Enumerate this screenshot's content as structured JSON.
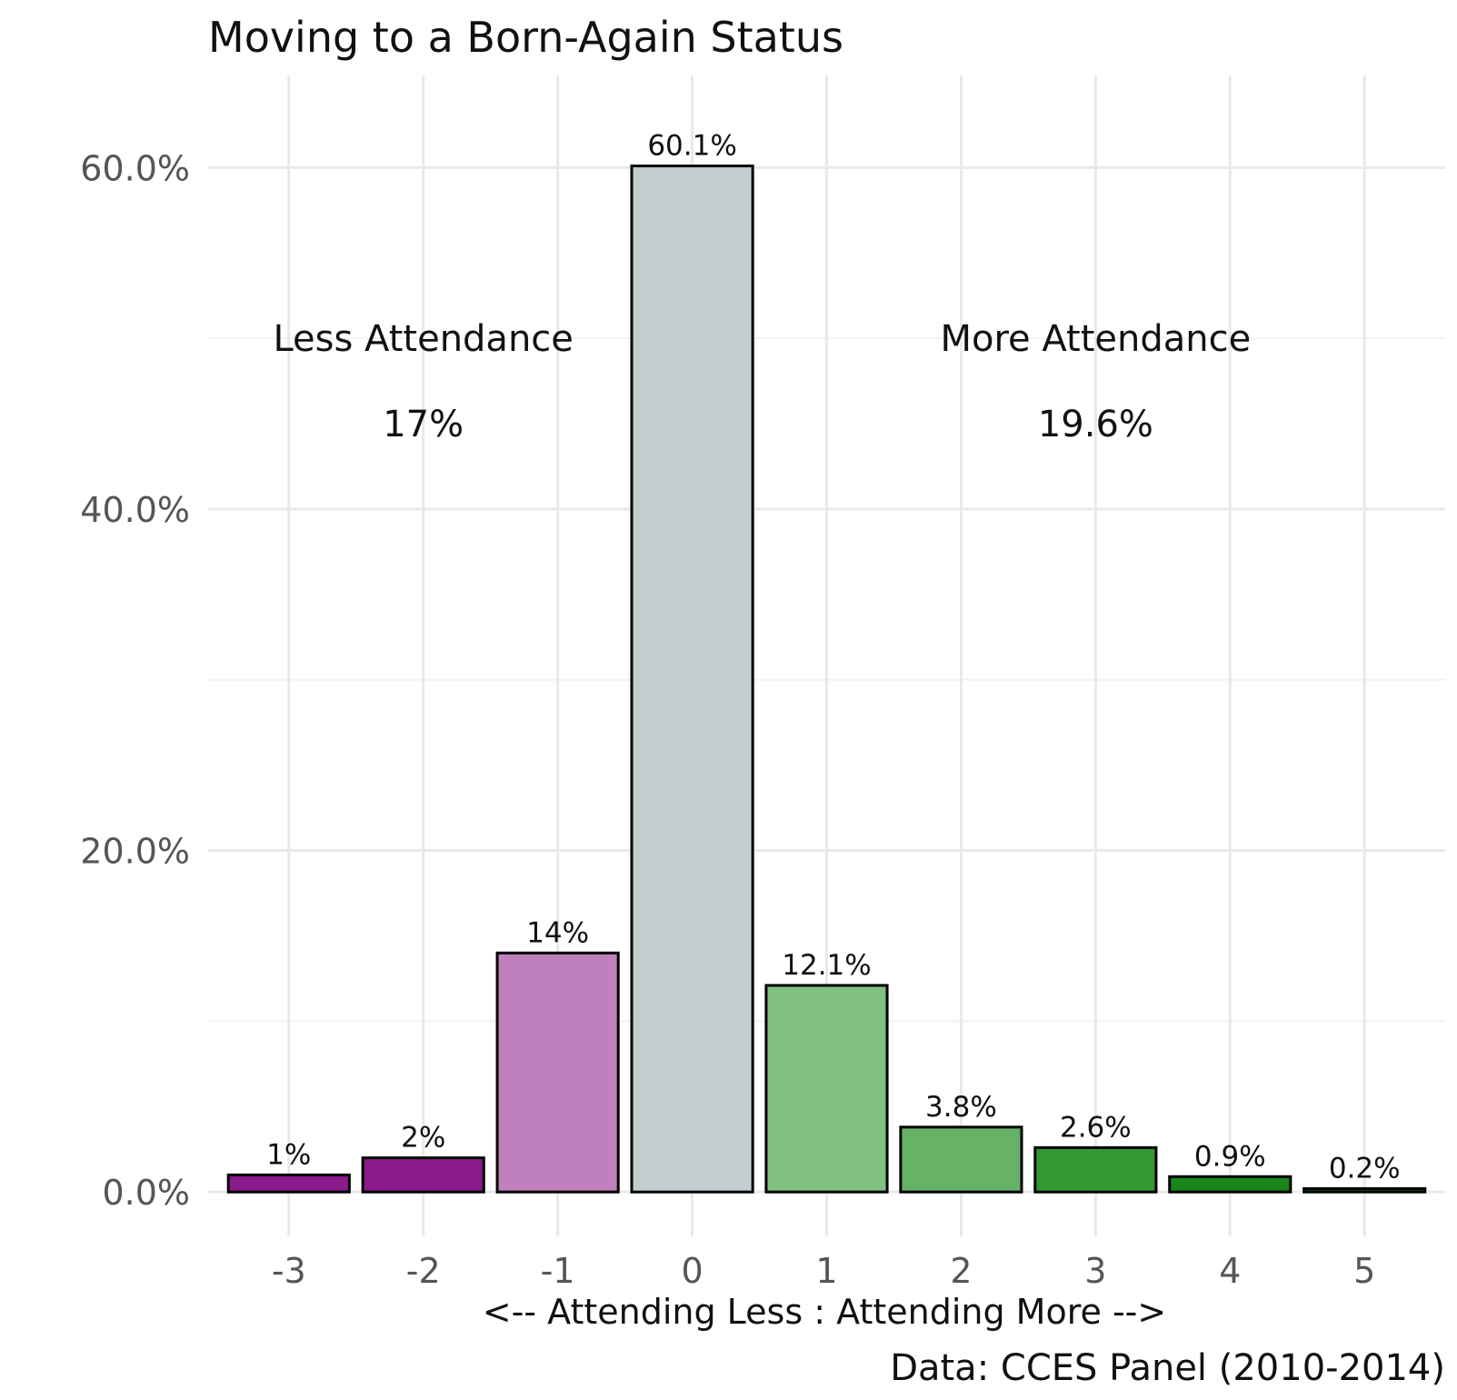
{
  "chart_data": {
    "type": "bar",
    "title": "Moving to a Born-Again Status",
    "xlabel": "<-- Attending Less : Attending More -->",
    "ylabel": "",
    "caption": "Data: CCES Panel (2010-2014)",
    "categories": [
      "-3",
      "-2",
      "-1",
      "0",
      "1",
      "2",
      "3",
      "4",
      "5"
    ],
    "values": [
      1.0,
      2.0,
      14.0,
      60.1,
      12.1,
      3.8,
      2.6,
      0.9,
      0.2
    ],
    "value_labels": [
      "1%",
      "2%",
      "14%",
      "60.1%",
      "12.1%",
      "3.8%",
      "2.6%",
      "0.9%",
      "0.2%"
    ],
    "bar_colors": [
      "#8b1a8b",
      "#8b1a8b",
      "#c080bd",
      "#c2cece",
      "#80c080",
      "#66b266",
      "#339933",
      "#1a861a",
      "#006400"
    ],
    "ylim": [
      -2.6,
      65.4
    ],
    "yticks": [
      0,
      20,
      40,
      60
    ],
    "ytick_labels": [
      "0.0%",
      "20.0%",
      "40.0%",
      "60.0%"
    ],
    "grid": true,
    "legend": "none",
    "annotations": [
      {
        "text": "Less Attendance",
        "x": -2,
        "y": 50
      },
      {
        "text": "17%",
        "x": -2,
        "y": 45
      },
      {
        "text": "More Attendance",
        "x": 3,
        "y": 50
      },
      {
        "text": "19.6%",
        "x": 3,
        "y": 45
      }
    ]
  }
}
